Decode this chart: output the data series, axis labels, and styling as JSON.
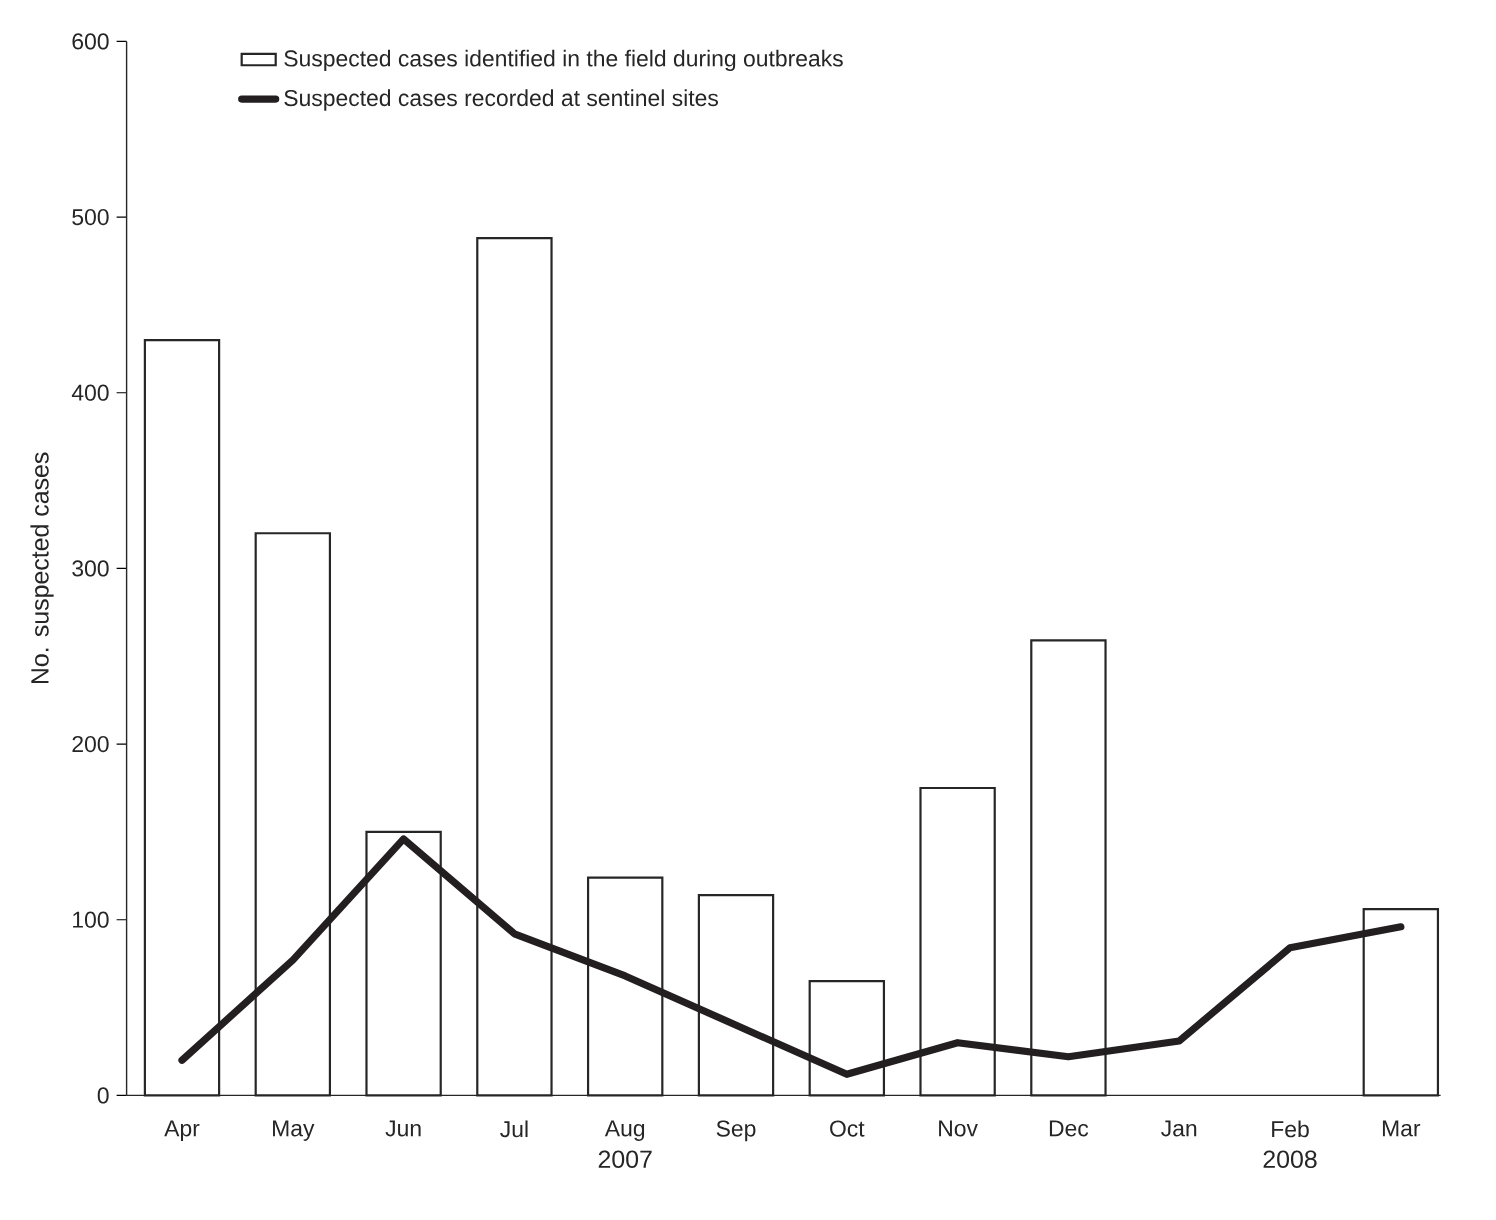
{
  "chart_data": {
    "type": "bar",
    "ylabel": "No. suspected cases",
    "categories": [
      "Apr",
      "May",
      "Jun",
      "Jul",
      "Aug",
      "Sep",
      "Oct",
      "Nov",
      "Dec",
      "Jan",
      "Feb",
      "Mar"
    ],
    "series": [
      {
        "name": "Suspected cases identified in the field during outbreaks",
        "color": "#ffffff",
        "values": [
          430,
          320,
          150,
          488,
          124,
          114,
          65,
          175,
          259,
          null,
          null,
          106
        ]
      },
      {
        "name": "Suspected cases recorded at sentinel sites",
        "type": "line",
        "color": "#231f20",
        "values": [
          20,
          77,
          146,
          92,
          68,
          40,
          12,
          30,
          22,
          31,
          84,
          96
        ]
      }
    ],
    "ylim": [
      0,
      600
    ],
    "yticks": [
      0,
      100,
      200,
      300,
      400,
      500,
      600
    ],
    "grid": false,
    "legend": "top left",
    "marker": "none",
    "line_style": "solid",
    "annotations": [
      "2007",
      "2008"
    ]
  }
}
